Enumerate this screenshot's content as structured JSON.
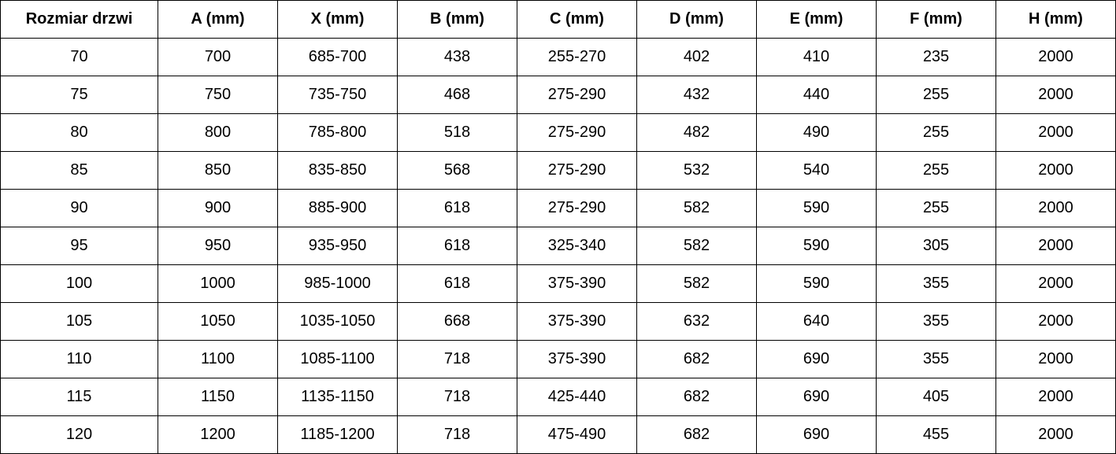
{
  "table": {
    "headers": [
      "Rozmiar drzwi",
      "A (mm)",
      "X (mm)",
      "B (mm)",
      "C (mm)",
      "D (mm)",
      "E (mm)",
      "F (mm)",
      "H (mm)"
    ],
    "rows": [
      [
        "70",
        "700",
        "685-700",
        "438",
        "255-270",
        "402",
        "410",
        "235",
        "2000"
      ],
      [
        "75",
        "750",
        "735-750",
        "468",
        "275-290",
        "432",
        "440",
        "255",
        "2000"
      ],
      [
        "80",
        "800",
        "785-800",
        "518",
        "275-290",
        "482",
        "490",
        "255",
        "2000"
      ],
      [
        "85",
        "850",
        "835-850",
        "568",
        "275-290",
        "532",
        "540",
        "255",
        "2000"
      ],
      [
        "90",
        "900",
        "885-900",
        "618",
        "275-290",
        "582",
        "590",
        "255",
        "2000"
      ],
      [
        "95",
        "950",
        "935-950",
        "618",
        "325-340",
        "582",
        "590",
        "305",
        "2000"
      ],
      [
        "100",
        "1000",
        "985-1000",
        "618",
        "375-390",
        "582",
        "590",
        "355",
        "2000"
      ],
      [
        "105",
        "1050",
        "1035-1050",
        "668",
        "375-390",
        "632",
        "640",
        "355",
        "2000"
      ],
      [
        "110",
        "1100",
        "1085-1100",
        "718",
        "375-390",
        "682",
        "690",
        "355",
        "2000"
      ],
      [
        "115",
        "1150",
        "1135-1150",
        "718",
        "425-440",
        "682",
        "690",
        "405",
        "2000"
      ],
      [
        "120",
        "1200",
        "1185-1200",
        "718",
        "475-490",
        "682",
        "690",
        "455",
        "2000"
      ]
    ]
  }
}
